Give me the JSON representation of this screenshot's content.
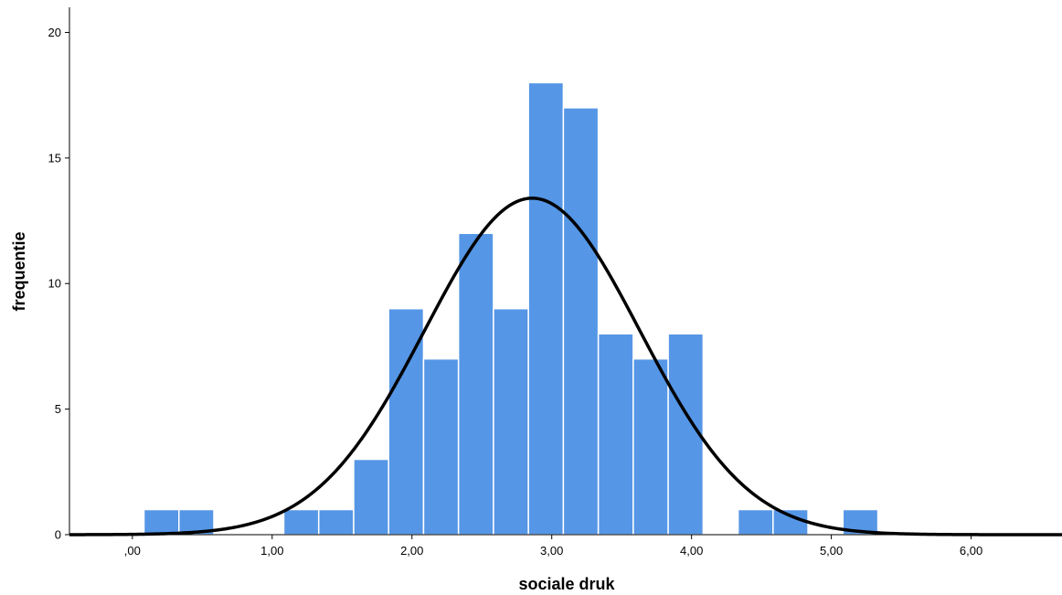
{
  "chart_data": {
    "type": "bar",
    "subtype": "histogram",
    "title": "",
    "xlabel": "sociale druk",
    "ylabel": "frequentie",
    "xlim": [
      -0.45,
      6.65
    ],
    "ylim": [
      0,
      21
    ],
    "x_ticks": [
      {
        "value": 0,
        "label": ",00"
      },
      {
        "value": 1,
        "label": "1,00"
      },
      {
        "value": 2,
        "label": "2,00"
      },
      {
        "value": 3,
        "label": "3,00"
      },
      {
        "value": 4,
        "label": "4,00"
      },
      {
        "value": 5,
        "label": "5,00"
      },
      {
        "value": 6,
        "label": "6,00"
      }
    ],
    "y_ticks": [
      {
        "value": 0,
        "label": "0"
      },
      {
        "value": 5,
        "label": "5"
      },
      {
        "value": 10,
        "label": "10"
      },
      {
        "value": 15,
        "label": "15"
      },
      {
        "value": 20,
        "label": "20"
      }
    ],
    "bin_width": 0.25,
    "bins": [
      {
        "start": 0.083,
        "count": 1
      },
      {
        "start": 0.333,
        "count": 1
      },
      {
        "start": 1.083,
        "count": 1
      },
      {
        "start": 1.333,
        "count": 1
      },
      {
        "start": 1.583,
        "count": 3
      },
      {
        "start": 1.833,
        "count": 9
      },
      {
        "start": 2.083,
        "count": 7
      },
      {
        "start": 2.333,
        "count": 12
      },
      {
        "start": 2.583,
        "count": 9
      },
      {
        "start": 2.833,
        "count": 18
      },
      {
        "start": 3.083,
        "count": 17
      },
      {
        "start": 3.333,
        "count": 8
      },
      {
        "start": 3.583,
        "count": 7
      },
      {
        "start": 3.833,
        "count": 8
      },
      {
        "start": 4.333,
        "count": 1
      },
      {
        "start": 4.583,
        "count": 1
      },
      {
        "start": 5.083,
        "count": 1
      }
    ],
    "normal_curve": {
      "mean": 2.86,
      "sd": 0.77,
      "peak": 13.4
    },
    "grid": false,
    "legend": "none",
    "colors": {
      "bar_fill": "#5596E6",
      "bar_edge": "#ffffff",
      "curve": "#000000",
      "axis": "#000000"
    }
  }
}
